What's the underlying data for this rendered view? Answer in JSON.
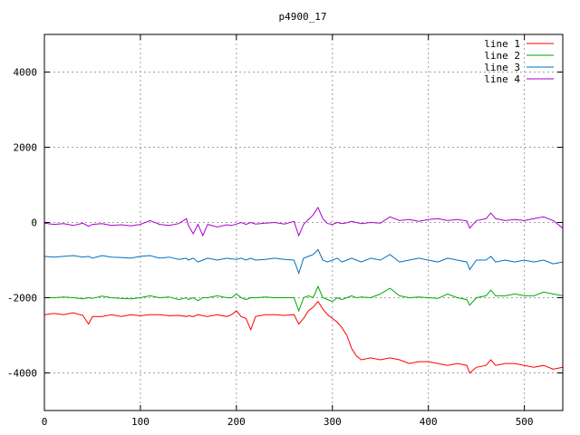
{
  "chart_data": {
    "type": "line",
    "title": "p4900_17",
    "xlabel": "",
    "ylabel": "",
    "xlim": [
      0,
      540
    ],
    "ylim": [
      -5000,
      5000
    ],
    "x_ticks": [
      0,
      100,
      200,
      300,
      400,
      500
    ],
    "y_ticks": [
      -4000,
      -2000,
      0,
      2000,
      4000
    ],
    "grid": true,
    "legend_position": "top-right",
    "x": [
      0,
      10,
      20,
      30,
      40,
      46,
      50,
      60,
      70,
      80,
      90,
      100,
      110,
      120,
      130,
      140,
      148,
      150,
      155,
      160,
      165,
      170,
      180,
      190,
      195,
      200,
      205,
      210,
      215,
      220,
      230,
      240,
      250,
      260,
      265,
      270,
      275,
      280,
      285,
      290,
      295,
      300,
      305,
      310,
      315,
      320,
      325,
      330,
      340,
      350,
      360,
      370,
      380,
      390,
      400,
      410,
      420,
      430,
      440,
      443,
      450,
      460,
      465,
      470,
      480,
      490,
      500,
      510,
      520,
      530,
      540
    ],
    "series": [
      {
        "name": "line 1",
        "color": "#ff0000",
        "values": [
          -2450,
          -2420,
          -2450,
          -2400,
          -2470,
          -2700,
          -2500,
          -2500,
          -2450,
          -2500,
          -2450,
          -2480,
          -2450,
          -2450,
          -2480,
          -2470,
          -2500,
          -2480,
          -2500,
          -2450,
          -2480,
          -2500,
          -2450,
          -2500,
          -2450,
          -2350,
          -2500,
          -2550,
          -2850,
          -2500,
          -2450,
          -2450,
          -2470,
          -2450,
          -2700,
          -2550,
          -2350,
          -2250,
          -2100,
          -2300,
          -2450,
          -2550,
          -2650,
          -2800,
          -3000,
          -3350,
          -3550,
          -3650,
          -3600,
          -3650,
          -3600,
          -3650,
          -3750,
          -3700,
          -3700,
          -3750,
          -3800,
          -3750,
          -3800,
          -4000,
          -3850,
          -3800,
          -3650,
          -3800,
          -3750,
          -3750,
          -3800,
          -3850,
          -3800,
          -3900,
          -3850
        ]
      },
      {
        "name": "line 2",
        "color": "#00aa00",
        "values": [
          -2000,
          -2000,
          -1980,
          -2000,
          -2030,
          -2000,
          -2020,
          -1960,
          -2000,
          -2020,
          -2030,
          -2000,
          -1950,
          -2000,
          -1980,
          -2050,
          -2000,
          -2050,
          -2000,
          -2080,
          -2000,
          -2000,
          -1950,
          -2000,
          -2000,
          -1900,
          -2000,
          -2050,
          -2000,
          -2000,
          -1980,
          -2000,
          -2000,
          -2000,
          -2350,
          -2000,
          -1950,
          -2000,
          -1700,
          -2000,
          -2050,
          -2100,
          -2000,
          -2050,
          -2000,
          -1950,
          -2000,
          -1980,
          -2000,
          -1900,
          -1750,
          -1950,
          -2000,
          -1980,
          -2000,
          -2020,
          -1900,
          -2000,
          -2050,
          -2200,
          -2000,
          -1950,
          -1800,
          -1950,
          -1950,
          -1900,
          -1950,
          -1950,
          -1850,
          -1900,
          -1950
        ]
      },
      {
        "name": "line 3",
        "color": "#0070c0",
        "values": [
          -900,
          -920,
          -900,
          -880,
          -920,
          -900,
          -950,
          -880,
          -920,
          -930,
          -950,
          -900,
          -880,
          -950,
          -920,
          -980,
          -950,
          -1000,
          -950,
          -1050,
          -1000,
          -950,
          -1000,
          -950,
          -970,
          -980,
          -950,
          -1000,
          -950,
          -1000,
          -980,
          -950,
          -980,
          -1000,
          -1350,
          -950,
          -900,
          -850,
          -720,
          -1000,
          -1050,
          -1000,
          -950,
          -1050,
          -1000,
          -950,
          -1000,
          -1050,
          -950,
          -1000,
          -850,
          -1050,
          -1000,
          -950,
          -1000,
          -1050,
          -950,
          -1000,
          -1050,
          -1250,
          -1000,
          -1000,
          -900,
          -1050,
          -1000,
          -1050,
          -1000,
          -1050,
          -1000,
          -1100,
          -1050
        ]
      },
      {
        "name": "line 4",
        "color": "#aa00cc",
        "values": [
          -20,
          -50,
          -30,
          -80,
          -20,
          -100,
          -50,
          -30,
          -80,
          -60,
          -90,
          -50,
          50,
          -50,
          -80,
          -30,
          100,
          -80,
          -300,
          -50,
          -350,
          -50,
          -120,
          -60,
          -80,
          -40,
          0,
          -50,
          0,
          -40,
          -20,
          0,
          -40,
          30,
          -350,
          -50,
          80,
          200,
          400,
          100,
          -30,
          -50,
          0,
          -30,
          -10,
          30,
          0,
          -30,
          0,
          -20,
          150,
          50,
          80,
          30,
          80,
          100,
          50,
          80,
          40,
          -150,
          50,
          100,
          250,
          100,
          50,
          80,
          50,
          100,
          150,
          50,
          -150
        ]
      }
    ]
  }
}
